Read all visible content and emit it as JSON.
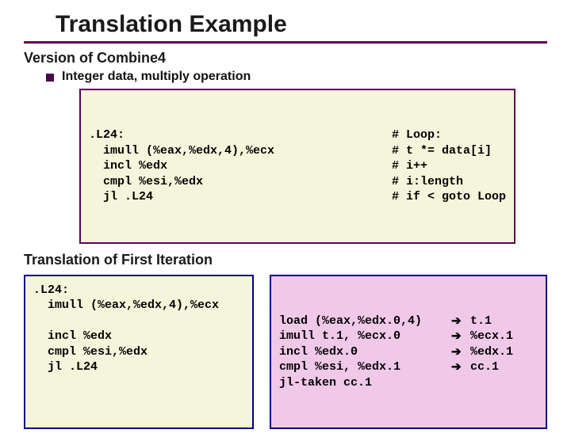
{
  "title": "Translation Example",
  "rule_color": "#5b005b",
  "section1": "Version of Combine4",
  "bullet1": "Integer data, multiply operation",
  "codebox1": {
    "bg": "#f5f5dc",
    "border": "#5b005b",
    "font_family": "Courier New",
    "font_size_pt": 12,
    "lines": [
      {
        "code": ".L24:",
        "comment": "# Loop:"
      },
      {
        "code": "  imull (%eax,%edx,4),%ecx",
        "comment": "# t *= data[i]"
      },
      {
        "code": "  incl %edx",
        "comment": "# i++"
      },
      {
        "code": "  cmpl %esi,%edx",
        "comment": "# i:length"
      },
      {
        "code": "  jl .L24",
        "comment": "# if < goto Loop"
      }
    ]
  },
  "section2": "Translation of First Iteration",
  "box_left": {
    "bg": "#f5f5dc",
    "border": "#00008b",
    "lines": [
      ".L24:",
      "  imull (%eax,%edx,4),%ecx",
      "",
      "  incl %edx",
      "  cmpl %esi,%edx",
      "  jl .L24"
    ]
  },
  "box_right": {
    "bg": "#f0c8e8",
    "border": "#00008b",
    "arrow_glyph": "➔",
    "rows": [
      {
        "left": "load (%eax,%edx.0,4)",
        "right": "t.1"
      },
      {
        "left": "imull t.1, %ecx.0",
        "right": "%ecx.1"
      },
      {
        "left": "incl %edx.0",
        "right": "%edx.1"
      },
      {
        "left": "cmpl %esi, %edx.1",
        "right": "cc.1"
      },
      {
        "left": "jl-taken cc.1",
        "right": ""
      }
    ]
  }
}
